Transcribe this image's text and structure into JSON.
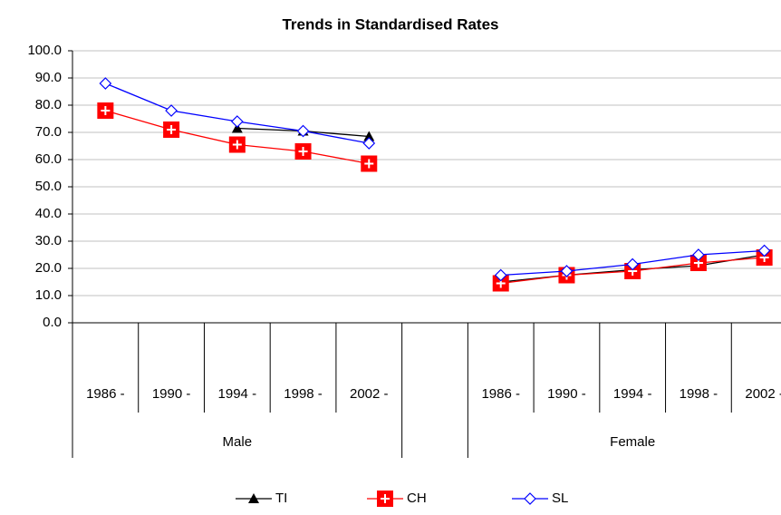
{
  "chart_data": {
    "type": "line",
    "title": "Trends in Standardised Rates",
    "categories": [
      "1986 -",
      "1990 -",
      "1994 -",
      "1998 -",
      "2002 -",
      null,
      "1986 -",
      "1990 -",
      "1994 -",
      "1998 -",
      "2002 -"
    ],
    "groups": [
      "Male",
      "Female"
    ],
    "series": [
      {
        "name": "TI",
        "color": "#000000",
        "marker": "triangle",
        "values": [
          null,
          null,
          71.5,
          70.5,
          68.5,
          null,
          15,
          17.5,
          19.5,
          21,
          25
        ]
      },
      {
        "name": "CH",
        "color": "#ff0000",
        "marker": "square-cross",
        "values": [
          78,
          71,
          65.5,
          63,
          58.5,
          null,
          14.5,
          17.5,
          19,
          22,
          24
        ]
      },
      {
        "name": "SL",
        "color": "#0000ff",
        "marker": "diamond",
        "values": [
          88,
          78,
          74,
          70.5,
          66,
          null,
          17.5,
          19,
          21.5,
          25,
          26.5
        ]
      }
    ],
    "ylim": [
      0,
      100
    ],
    "yticks": [
      {
        "value": 0,
        "label": "0.0"
      },
      {
        "value": 10,
        "label": "10.0"
      },
      {
        "value": 20,
        "label": "20.0"
      },
      {
        "value": 30,
        "label": "30.0"
      },
      {
        "value": 40,
        "label": "40.0"
      },
      {
        "value": 50,
        "label": "50.0"
      },
      {
        "value": 60,
        "label": "60.0"
      },
      {
        "value": 70,
        "label": "70.0"
      },
      {
        "value": 80,
        "label": "80.0"
      },
      {
        "value": 90,
        "label": "90.0"
      },
      {
        "value": 100,
        "label": "100.0"
      }
    ],
    "grid": true,
    "legend": "bottom"
  }
}
